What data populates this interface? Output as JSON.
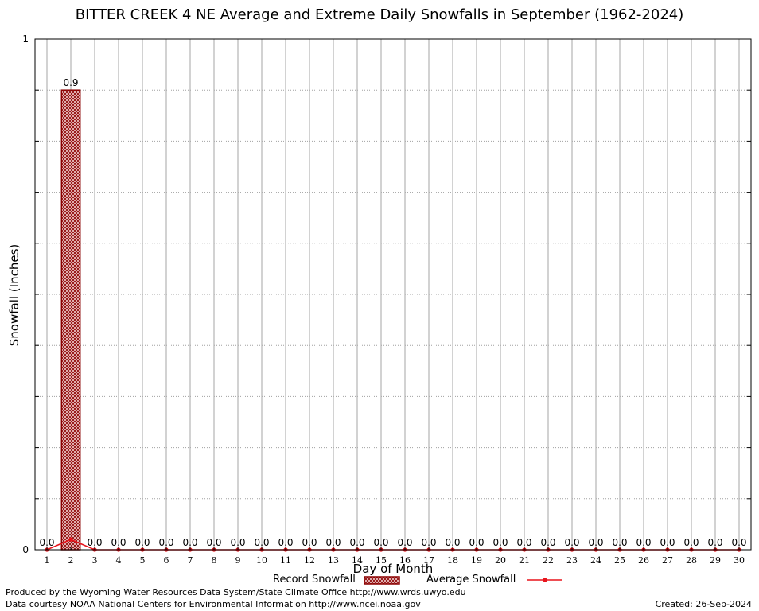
{
  "chart_data": {
    "type": "bar",
    "title": "BITTER CREEK 4 NE Average and Extreme Daily Snowfalls in September (1962-2024)",
    "xlabel": "Day of Month",
    "ylabel": "Snowfall (Inches)",
    "ylim": [
      0,
      1
    ],
    "y_ticks": [
      "0",
      "1"
    ],
    "categories": [
      "1",
      "2",
      "3",
      "4",
      "5",
      "6",
      "7",
      "8",
      "9",
      "10",
      "11",
      "12",
      "13",
      "14",
      "15",
      "16",
      "17",
      "18",
      "19",
      "20",
      "21",
      "22",
      "23",
      "24",
      "25",
      "26",
      "27",
      "28",
      "29",
      "30"
    ],
    "series": [
      {
        "name": "Record Snowfall",
        "type": "bar",
        "values": [
          0.0,
          0.9,
          0.0,
          0.0,
          0.0,
          0.0,
          0.0,
          0.0,
          0.0,
          0.0,
          0.0,
          0.0,
          0.0,
          0.0,
          0.0,
          0.0,
          0.0,
          0.0,
          0.0,
          0.0,
          0.0,
          0.0,
          0.0,
          0.0,
          0.0,
          0.0,
          0.0,
          0.0,
          0.0,
          0.0
        ],
        "labels": [
          "0.0",
          "0.9",
          "0.0",
          "0.0",
          "0.0",
          "0.0",
          "0.0",
          "0.0",
          "0.0",
          "0.0",
          "0.0",
          "0.0",
          "0.0",
          "0.0",
          "0.0",
          "0.0",
          "0.0",
          "0.0",
          "0.0",
          "0.0",
          "0.0",
          "0.0",
          "0.0",
          "0.0",
          "0.0",
          "0.0",
          "0.0",
          "0.0",
          "0.0",
          "0.0"
        ],
        "color": "#8b0000"
      },
      {
        "name": "Average Snowfall",
        "type": "line",
        "values": [
          0.0,
          0.02,
          0.0,
          0.0,
          0.0,
          0.0,
          0.0,
          0.0,
          0.0,
          0.0,
          0.0,
          0.0,
          0.0,
          0.0,
          0.0,
          0.0,
          0.0,
          0.0,
          0.0,
          0.0,
          0.0,
          0.0,
          0.0,
          0.0,
          0.0,
          0.0,
          0.0,
          0.0,
          0.0,
          0.0
        ],
        "color": "#e8141c"
      }
    ],
    "grid": true,
    "legend": "bottom"
  },
  "footer": {
    "produced_by": "Produced by the Wyoming Water Resources Data System/State Climate Office http://www.wrds.uwyo.edu",
    "courtesy": "Data courtesy NOAA National Centers for Environmental Information http://www.ncei.noaa.gov",
    "created": "Created: 26-Sep-2024"
  }
}
